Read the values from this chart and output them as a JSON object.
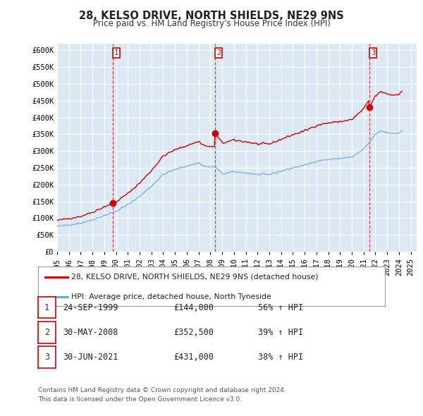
{
  "title": "28, KELSO DRIVE, NORTH SHIELDS, NE29 9NS",
  "subtitle": "Price paid vs. HM Land Registry's House Price Index (HPI)",
  "ylim": [
    0,
    620000
  ],
  "yticks": [
    0,
    50000,
    100000,
    150000,
    200000,
    250000,
    300000,
    350000,
    400000,
    450000,
    500000,
    550000,
    600000
  ],
  "ytick_labels": [
    "£0",
    "£50K",
    "£100K",
    "£150K",
    "£200K",
    "£250K",
    "£300K",
    "£350K",
    "£400K",
    "£450K",
    "£500K",
    "£550K",
    "£600K"
  ],
  "background_color": "#ffffff",
  "chart_bg_color": "#dce9f5",
  "grid_color": "#ffffff",
  "sale_color": "#cc0000",
  "hpi_color": "#6fa8d4",
  "vline_color": "#cc0000",
  "sale_label": "28, KELSO DRIVE, NORTH SHIELDS, NE29 9NS (detached house)",
  "hpi_label": "HPI: Average price, detached house, North Tyneside",
  "footnote1": "Contains HM Land Registry data © Crown copyright and database right 2024.",
  "footnote2": "This data is licensed under the Open Government Licence v3.0.",
  "sales": [
    {
      "num": 1,
      "date_x": 1999.73,
      "price": 144000,
      "label": "24-SEP-1999",
      "price_str": "£144,000",
      "pct": "56% ↑ HPI"
    },
    {
      "num": 2,
      "date_x": 2008.41,
      "price": 352500,
      "label": "30-MAY-2008",
      "price_str": "£352,500",
      "pct": "39% ↑ HPI"
    },
    {
      "num": 3,
      "date_x": 2021.49,
      "price": 431000,
      "label": "30-JUN-2021",
      "price_str": "£431,000",
      "pct": "38% ↑ HPI"
    }
  ],
  "xlim": [
    1995.0,
    2025.5
  ],
  "xticks": [
    1995,
    1996,
    1997,
    1998,
    1999,
    2000,
    2001,
    2002,
    2003,
    2004,
    2005,
    2006,
    2007,
    2008,
    2009,
    2010,
    2011,
    2012,
    2013,
    2014,
    2015,
    2016,
    2017,
    2018,
    2019,
    2020,
    2021,
    2022,
    2023,
    2024,
    2025
  ]
}
